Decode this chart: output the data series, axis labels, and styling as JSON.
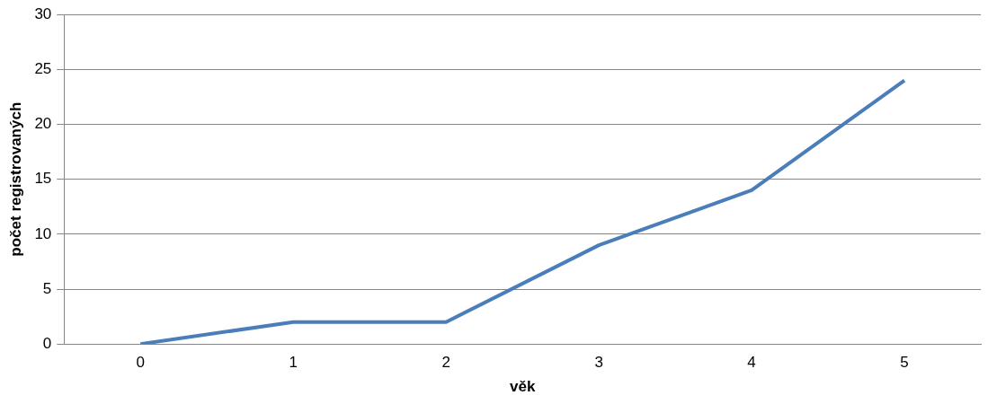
{
  "chart_data": {
    "type": "line",
    "xlabel": "věk",
    "ylabel": "počet registrovaných",
    "categories": [
      "0",
      "1",
      "2",
      "3",
      "4",
      "5"
    ],
    "series": [
      {
        "color": "#4a7ebb",
        "values": [
          0,
          2,
          2,
          9,
          14,
          24
        ]
      }
    ],
    "ylim": [
      0,
      30
    ],
    "yticks": [
      0,
      5,
      10,
      15,
      20,
      25,
      30
    ],
    "grid": "y",
    "legend": false,
    "marker": "none"
  }
}
